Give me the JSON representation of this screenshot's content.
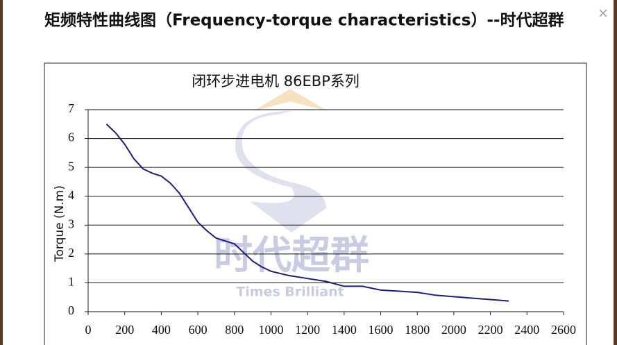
{
  "chart_data": {
    "type": "line",
    "title": "矩频特性曲线图（Frequency-torque characteristics）--时代超群",
    "subtitle": "闭环步进电机 86EBP系列",
    "ylabel": "Torque (N.m)",
    "watermark": [
      "时代超群",
      "Times Brilliant"
    ],
    "x": [
      100,
      150,
      200,
      250,
      300,
      350,
      400,
      450,
      500,
      550,
      600,
      650,
      700,
      750,
      800,
      850,
      900,
      950,
      1000,
      1100,
      1200,
      1300,
      1400,
      1500,
      1600,
      1800,
      1900,
      2000,
      2100,
      2200,
      2300
    ],
    "values": [
      6.5,
      6.2,
      5.8,
      5.3,
      4.95,
      4.8,
      4.7,
      4.45,
      4.1,
      3.6,
      3.1,
      2.8,
      2.55,
      2.45,
      2.35,
      2.05,
      1.75,
      1.55,
      1.4,
      1.25,
      1.15,
      1.05,
      0.88,
      0.88,
      0.75,
      0.67,
      0.57,
      0.52,
      0.47,
      0.42,
      0.37
    ],
    "color": "#1c1c80",
    "xlim": [
      0,
      2600
    ],
    "xticks": [
      0,
      200,
      400,
      600,
      800,
      1000,
      1200,
      1400,
      1600,
      1800,
      2000,
      2200,
      2400,
      2600
    ],
    "ylim": [
      0,
      7
    ],
    "yticks": [
      0,
      1,
      2,
      3,
      4,
      5,
      6,
      7
    ],
    "grid": true
  }
}
